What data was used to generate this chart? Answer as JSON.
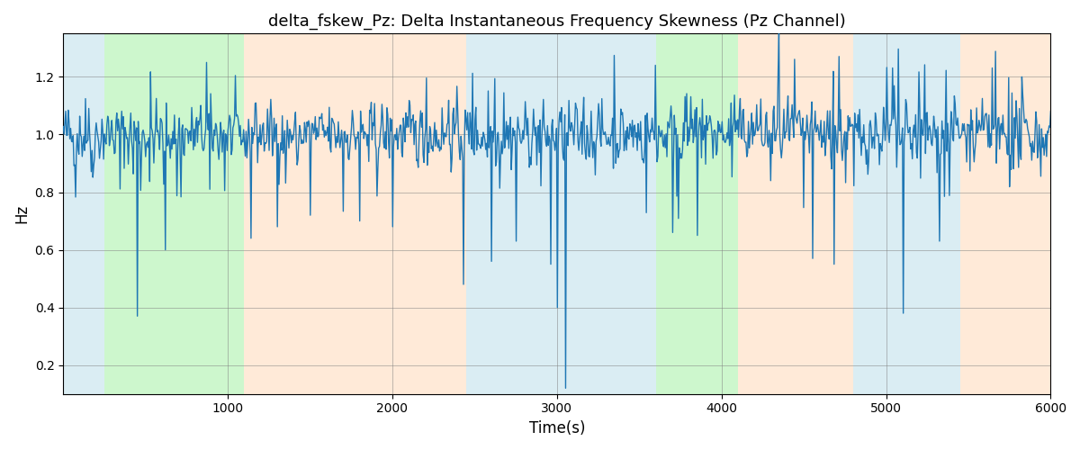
{
  "title": "delta_fskew_Pz: Delta Instantaneous Frequency Skewness (Pz Channel)",
  "xlabel": "Time(s)",
  "ylabel": "Hz",
  "xlim": [
    0,
    6000
  ],
  "ylim": [
    0.1,
    1.35
  ],
  "yticks": [
    0.2,
    0.4,
    0.6,
    0.8,
    1.0,
    1.2
  ],
  "xticks": [
    1000,
    2000,
    3000,
    4000,
    5000,
    6000
  ],
  "line_color": "#1f77b4",
  "line_width": 1.0,
  "bg_bands": [
    {
      "xmin": 0,
      "xmax": 250,
      "color": "#add8e6",
      "alpha": 0.45
    },
    {
      "xmin": 250,
      "xmax": 1100,
      "color": "#90ee90",
      "alpha": 0.45
    },
    {
      "xmin": 1100,
      "xmax": 2450,
      "color": "#ffdab9",
      "alpha": 0.55
    },
    {
      "xmin": 2450,
      "xmax": 3450,
      "color": "#add8e6",
      "alpha": 0.45
    },
    {
      "xmin": 3450,
      "xmax": 3600,
      "color": "#add8e6",
      "alpha": 0.45
    },
    {
      "xmin": 3600,
      "xmax": 4100,
      "color": "#90ee90",
      "alpha": 0.45
    },
    {
      "xmin": 4100,
      "xmax": 4800,
      "color": "#ffdab9",
      "alpha": 0.55
    },
    {
      "xmin": 4800,
      "xmax": 5450,
      "color": "#add8e6",
      "alpha": 0.45
    },
    {
      "xmin": 5450,
      "xmax": 6000,
      "color": "#ffdab9",
      "alpha": 0.55
    }
  ],
  "seed": 42,
  "n_points": 1200,
  "mean": 1.0,
  "std": 0.065
}
